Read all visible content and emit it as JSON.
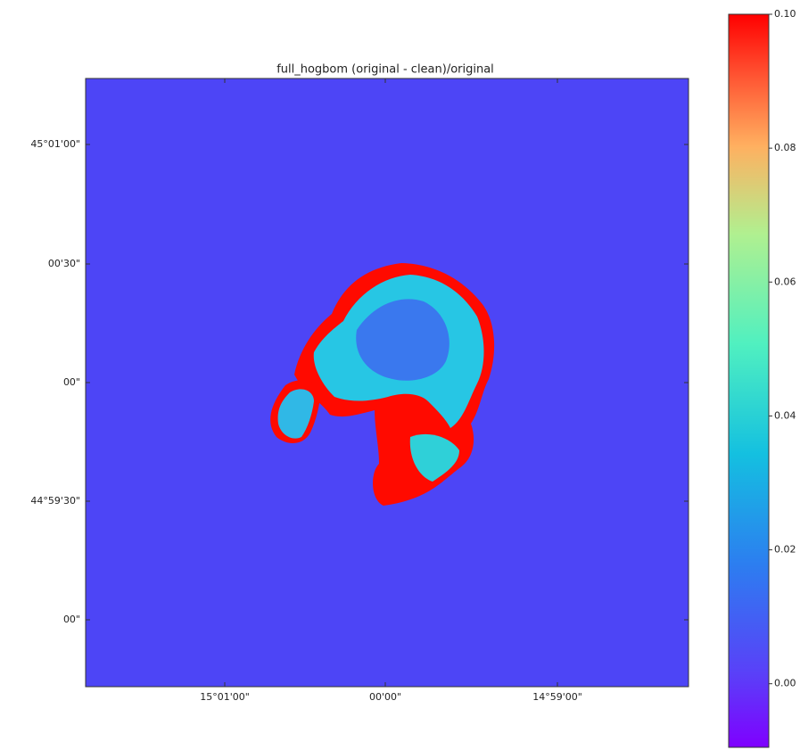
{
  "chart_data": {
    "type": "image",
    "title": "full_hogbom (original - clean)/original",
    "y_tick_labels": [
      "45°01'00\"",
      "00'30\"",
      "00\"",
      "44°59'30\"",
      "00\""
    ],
    "x_tick_labels": [
      "15°01'00\"",
      "00'00\"",
      "14°59'00\""
    ],
    "colormap": "rainbow",
    "clim": [
      -0.0095,
      0.1
    ],
    "cticks": [
      {
        "value": 0.1,
        "label": "0.10"
      },
      {
        "value": 0.08,
        "label": "0.08"
      },
      {
        "value": 0.06,
        "label": "0.06"
      },
      {
        "value": 0.04,
        "label": "0.04"
      },
      {
        "value": 0.02,
        "label": "0.02"
      },
      {
        "value": 0,
        "label": "0.00"
      }
    ]
  }
}
